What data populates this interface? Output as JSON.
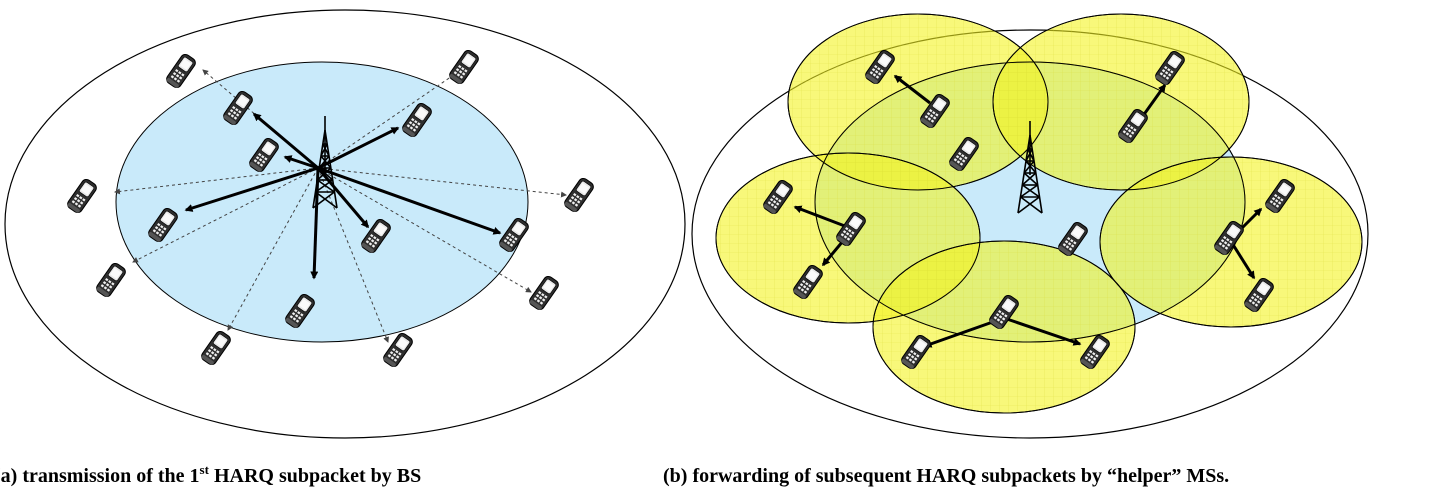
{
  "colors": {
    "inner_cell": "#c9eafa",
    "helper_zone": "#f4f421",
    "helper_zone_grid": "#d9d92a",
    "outline": "#000000",
    "phone_body": "#303030",
    "phone_screen": "#e8e8e8"
  },
  "icons": {
    "base_station": "tower-icon",
    "mobile_station": "phone-icon"
  },
  "captions": {
    "a_prefix": "(a) transmission of the 1",
    "a_superscript": "st",
    "a_suffix": " HARQ subpacket by BS",
    "b": "(b) forwarding of subsequent HARQ subpackets by “helper” MSs."
  }
}
